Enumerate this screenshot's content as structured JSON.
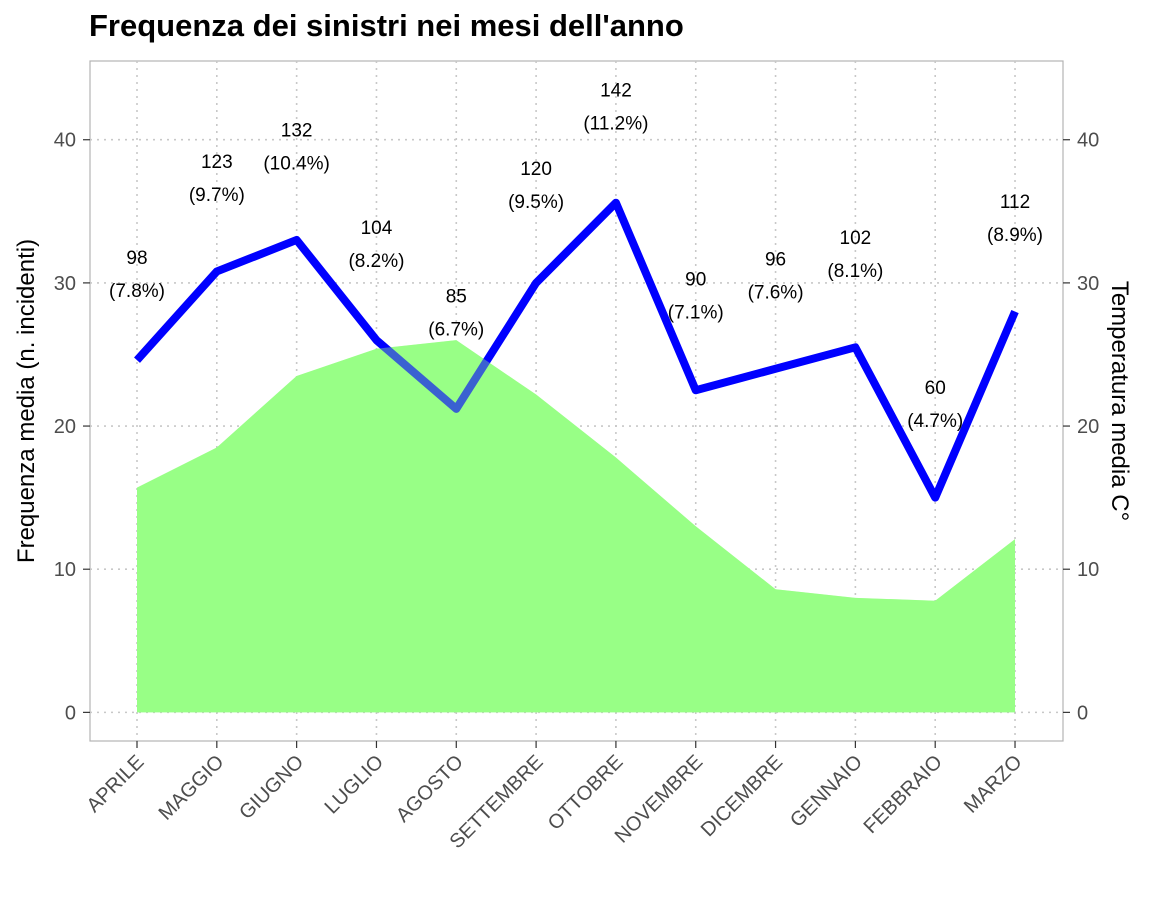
{
  "chart_data": {
    "type": "line",
    "title": "Frequenza dei sinistri nei mesi dell'anno",
    "ylabel": "Frequenza media (n. incidenti)",
    "y2label": "Temperatura media C°",
    "ylim": [
      -2,
      45.5
    ],
    "yticks": [
      0,
      10,
      20,
      30,
      40
    ],
    "grid": "horizontal dotted",
    "categories": [
      "APRILE",
      "MAGGIO",
      "GIUGNO",
      "LUGLIO",
      "AGOSTO",
      "SETTEMBRE",
      "OTTOBRE",
      "NOVEMBRE",
      "DICEMBRE",
      "GENNAIO",
      "FEBBRAIO",
      "MARZO"
    ],
    "series": [
      {
        "type": "line",
        "color": "#0000ff",
        "values": [
          24.6,
          30.8,
          33.0,
          26.0,
          21.2,
          30.0,
          35.6,
          22.5,
          24.0,
          25.5,
          15.0,
          28.0
        ],
        "labels": [
          [
            "98",
            "(7.8%)"
          ],
          [
            "123",
            "(9.7%)"
          ],
          [
            "132",
            "(10.4%)"
          ],
          [
            "104",
            "(8.2%)"
          ],
          [
            "85",
            "(6.7%)"
          ],
          [
            "120",
            "(9.5%)"
          ],
          [
            "142",
            "(11.2%)"
          ],
          [
            "90",
            "(7.1%)"
          ],
          [
            "96",
            "(7.6%)"
          ],
          [
            "102",
            "(8.1%)"
          ],
          [
            "60",
            "(4.7%)"
          ],
          [
            "112",
            "(8.9%)"
          ]
        ],
        "label_values": [
          30.7,
          37.4,
          39.6,
          32.8,
          28.0,
          36.9,
          42.4,
          29.2,
          30.6,
          32.1,
          21.6,
          34.6
        ]
      },
      {
        "type": "area",
        "axis": "right",
        "color": "#98ff86",
        "values": [
          15.7,
          18.5,
          23.5,
          25.4,
          26.0,
          22.2,
          17.8,
          13.0,
          8.6,
          8.0,
          7.8,
          12.1
        ]
      }
    ]
  }
}
